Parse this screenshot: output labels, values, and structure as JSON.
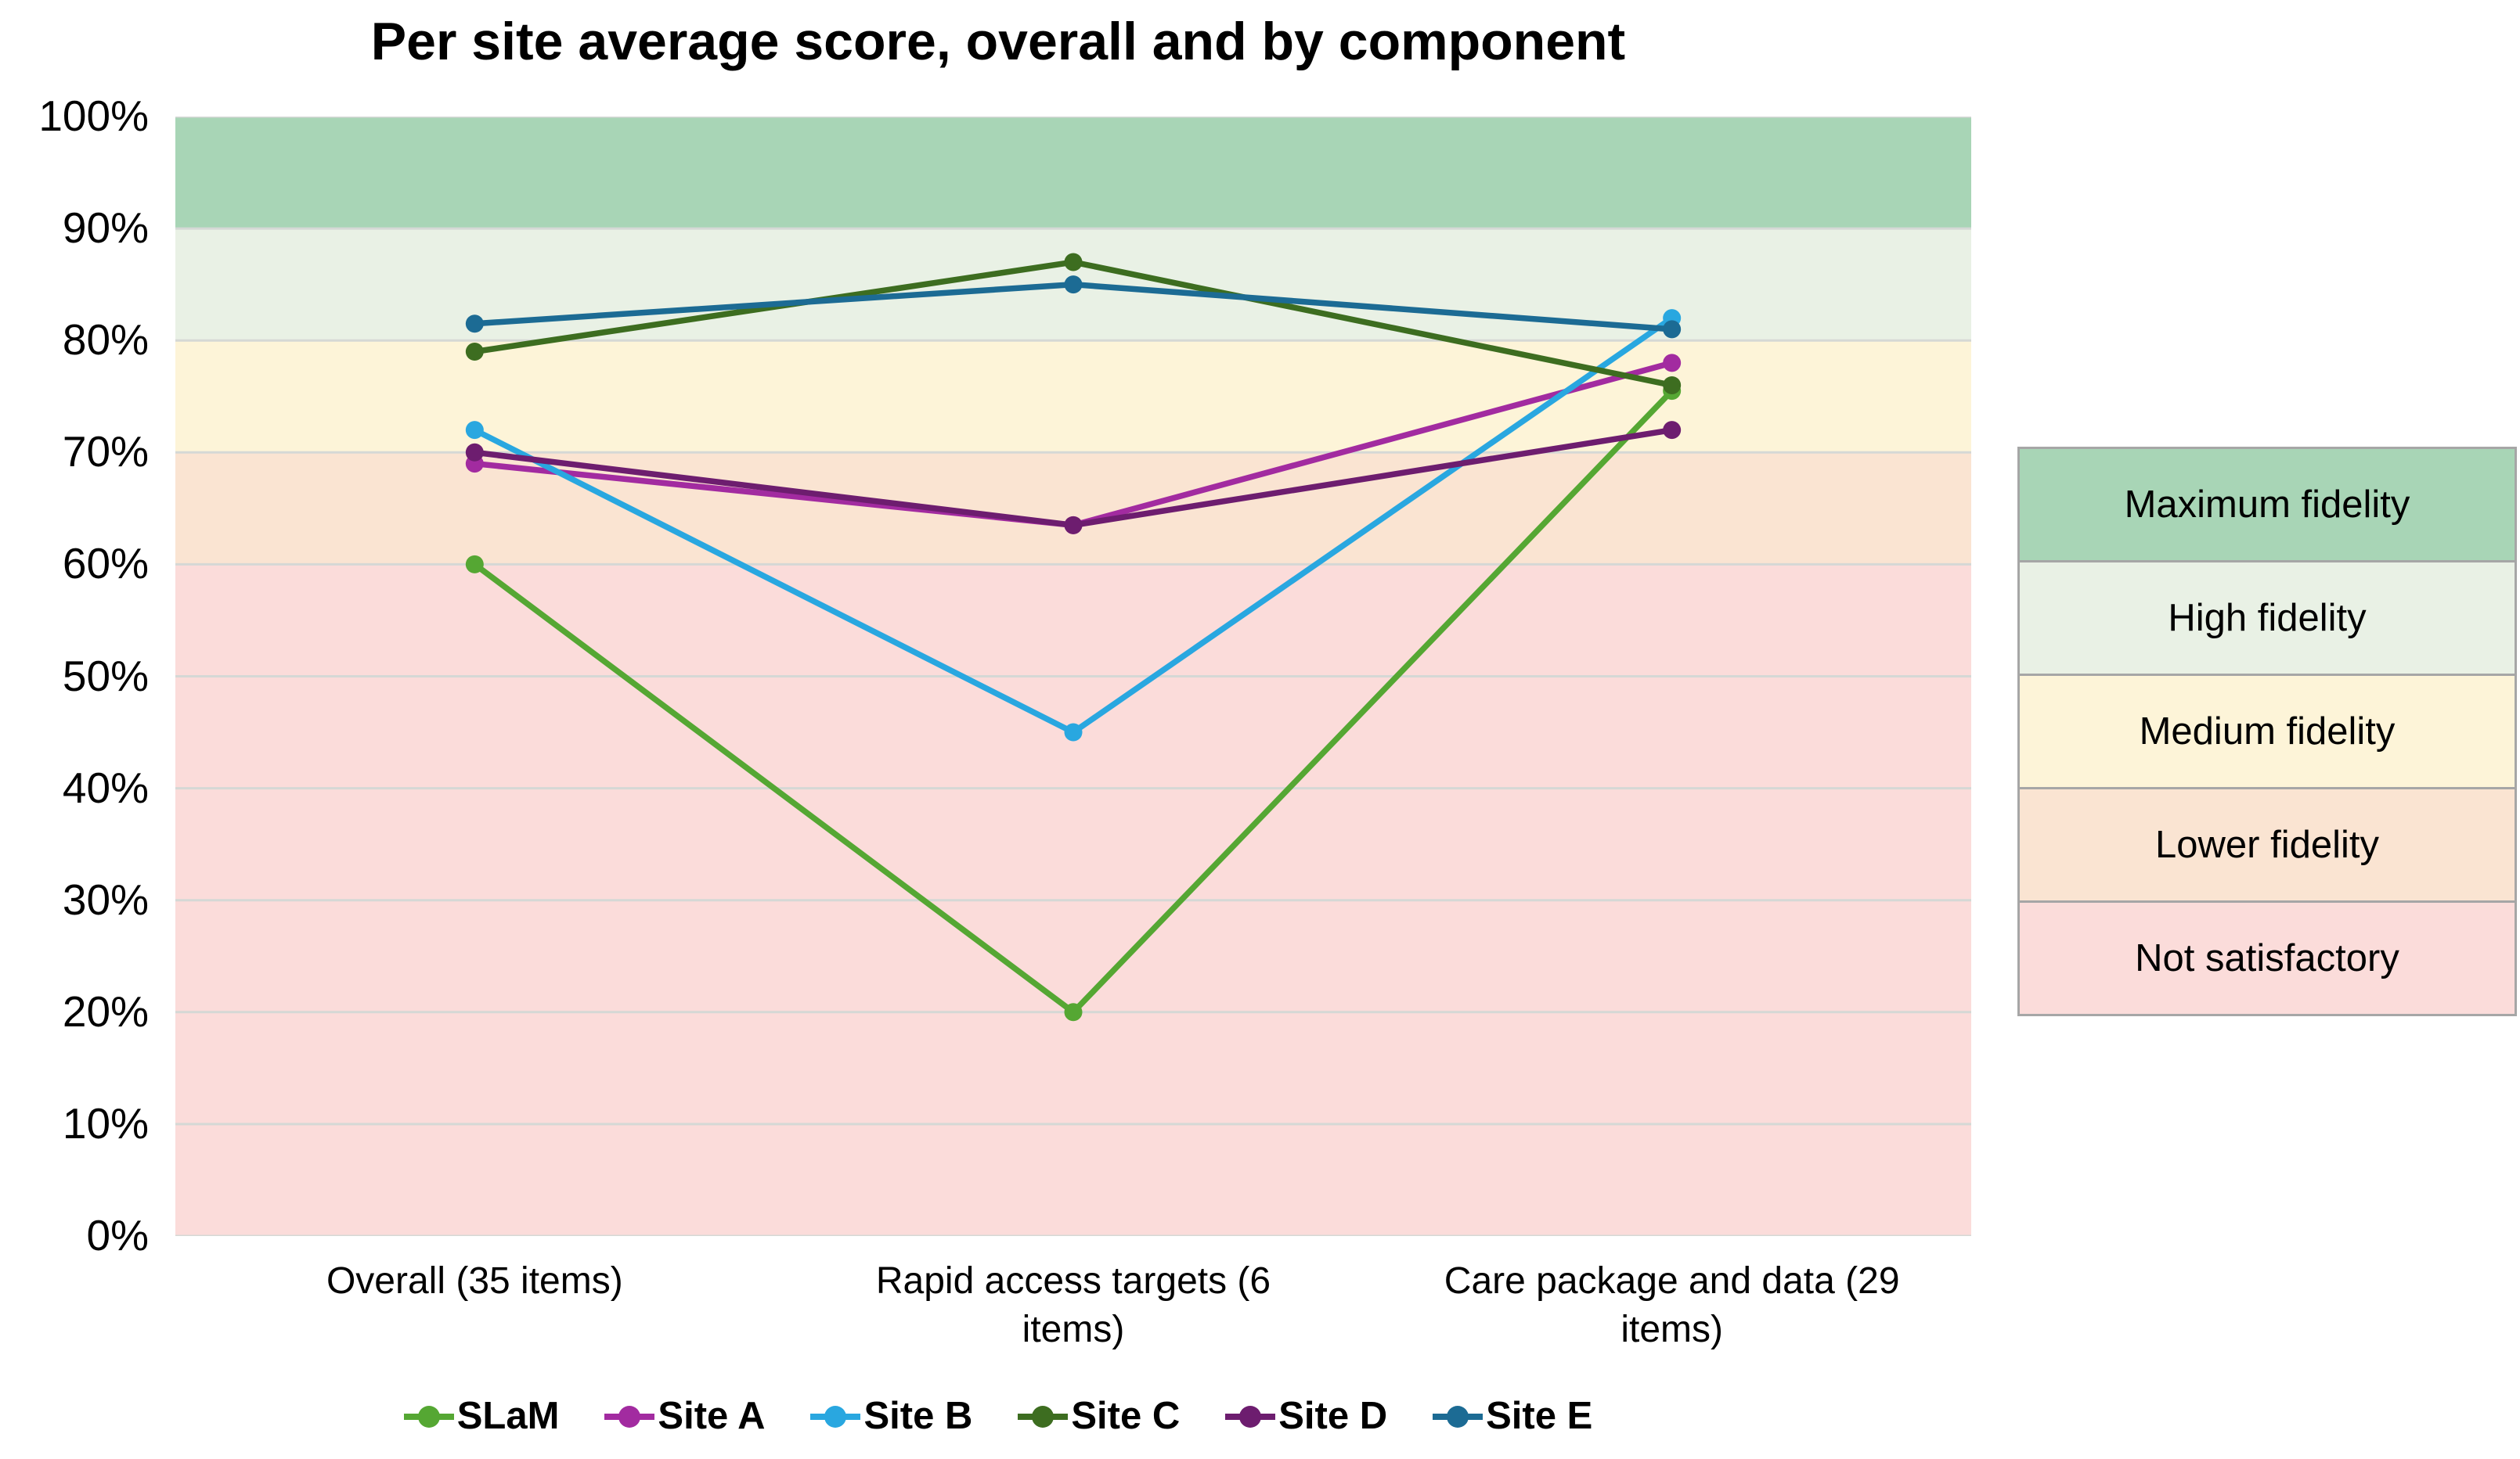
{
  "chart_data": {
    "type": "line",
    "title": "Per site average score, overall and by component",
    "categories": [
      "Overall (35 items)",
      "Rapid access targets (6\nitems)",
      "Care package and data (29\nitems)"
    ],
    "y_ticks": [
      "0%",
      "10%",
      "20%",
      "30%",
      "40%",
      "50%",
      "60%",
      "70%",
      "80%",
      "90%",
      "100%"
    ],
    "ylim": [
      0,
      100
    ],
    "grid": true,
    "gridline_color": "#d5d8d5",
    "legend_position": "bottom",
    "series": [
      {
        "name": "SLaM",
        "color": "#55a733",
        "values": [
          60,
          20,
          75.5
        ]
      },
      {
        "name": "Site A",
        "color": "#a22ba0",
        "values": [
          69,
          63.5,
          78
        ]
      },
      {
        "name": "Site B",
        "color": "#29a7e0",
        "values": [
          72,
          45,
          82
        ]
      },
      {
        "name": "Site C",
        "color": "#3d6d20",
        "values": [
          79,
          87,
          76
        ]
      },
      {
        "name": "Site D",
        "color": "#6d1d6f",
        "values": [
          70,
          63.5,
          72
        ]
      },
      {
        "name": "Site E",
        "color": "#1c6b94",
        "values": [
          81.5,
          85,
          81
        ]
      }
    ],
    "bands": [
      {
        "label": "Maximum fidelity",
        "from": 90,
        "to": 100,
        "color": "#a8d5b6"
      },
      {
        "label": "High fidelity",
        "from": 80,
        "to": 90,
        "color": "#e9f1e5"
      },
      {
        "label": "Medium fidelity",
        "from": 70,
        "to": 80,
        "color": "#fdf4d8"
      },
      {
        "label": "Lower fidelity",
        "from": 60,
        "to": 70,
        "color": "#fae4d2"
      },
      {
        "label": "Not satisfactory",
        "from": 0,
        "to": 60,
        "color": "#fbdcda"
      }
    ]
  }
}
